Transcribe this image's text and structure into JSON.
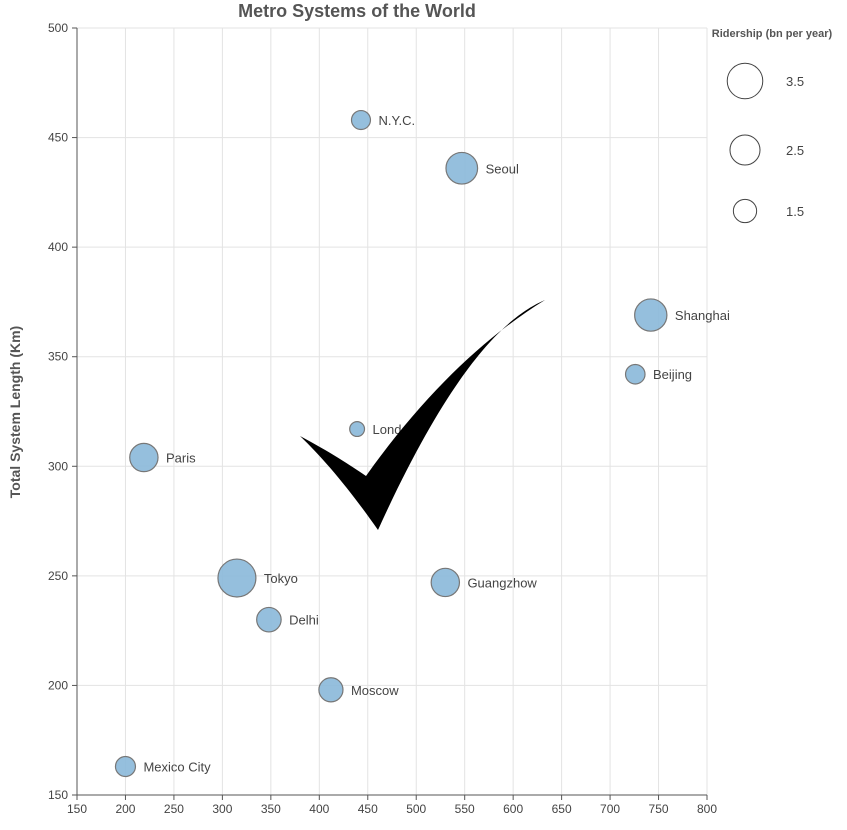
{
  "chart_data": {
    "type": "scatter",
    "title": "Metro Systems of the World",
    "ylabel": "Total System Length (Km)",
    "xlabel": "",
    "xlim": [
      150,
      800
    ],
    "ylim": [
      150,
      500
    ],
    "xticks": [
      150,
      200,
      250,
      300,
      350,
      400,
      450,
      500,
      550,
      600,
      650,
      700,
      750,
      800
    ],
    "yticks": [
      150,
      200,
      250,
      300,
      350,
      400,
      450,
      500
    ],
    "grid": true,
    "size_legend": {
      "title": "Ridership (bn per year)",
      "placement": "top-right",
      "values": [
        3.5,
        2.5,
        1.5
      ],
      "labels": [
        "3.5",
        "2.5",
        "1.5"
      ]
    },
    "points": [
      {
        "name": "N.Y.C.",
        "x": 443,
        "y": 458,
        "ridership": 0.9
      },
      {
        "name": "Seoul",
        "x": 547,
        "y": 436,
        "ridership": 2.5
      },
      {
        "name": "Shanghai",
        "x": 742,
        "y": 369,
        "ridership": 2.6
      },
      {
        "name": "Beijing",
        "x": 726,
        "y": 342,
        "ridership": 0.95
      },
      {
        "name": "London",
        "x": 439,
        "y": 317,
        "ridership": 0.55
      },
      {
        "name": "Paris",
        "x": 219,
        "y": 304,
        "ridership": 2.0
      },
      {
        "name": "Tokyo",
        "x": 315,
        "y": 249,
        "ridership": 3.6
      },
      {
        "name": "Guangzhow",
        "x": 530,
        "y": 247,
        "ridership": 2.0
      },
      {
        "name": "Delhi",
        "x": 348,
        "y": 230,
        "ridership": 1.5
      },
      {
        "name": "Moscow",
        "x": 412,
        "y": 198,
        "ridership": 1.45
      },
      {
        "name": "Mexico City",
        "x": 200,
        "y": 163,
        "ridership": 1.0
      }
    ]
  },
  "overlay": {
    "icon": "checkmark-icon",
    "color": "#000000"
  }
}
